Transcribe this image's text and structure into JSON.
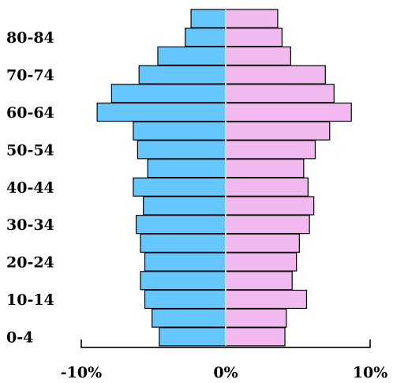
{
  "chart_data": {
    "type": "bar",
    "orientation": "horizontal",
    "layout": "population-pyramid",
    "categories": [
      "0-4",
      "5-9",
      "10-14",
      "15-19",
      "20-24",
      "25-29",
      "30-34",
      "35-39",
      "40-44",
      "45-49",
      "50-54",
      "55-59",
      "60-64",
      "65-69",
      "70-74",
      "75-79",
      "80-84",
      "85+"
    ],
    "visible_category_labels": [
      "0-4",
      "10-14",
      "20-24",
      "30-34",
      "40-44",
      "50-54",
      "60-64",
      "70-74",
      "80-84"
    ],
    "series": [
      {
        "side": "left",
        "color": "#66c7ff",
        "values": [
          4.6,
          5.1,
          5.6,
          5.9,
          5.6,
          5.9,
          6.2,
          5.7,
          6.4,
          5.4,
          6.1,
          6.4,
          8.9,
          7.9,
          6.0,
          4.7,
          2.8,
          2.4
        ]
      },
      {
        "side": "right",
        "color": "#f2b8f0",
        "values": [
          4.1,
          4.2,
          5.6,
          4.6,
          4.9,
          5.1,
          5.8,
          6.1,
          5.7,
          5.4,
          6.2,
          7.2,
          8.7,
          7.5,
          6.9,
          4.5,
          3.9,
          3.6
        ]
      }
    ],
    "x_ticks": [
      "-10%",
      "0%",
      "10%"
    ],
    "xlim": [
      -10,
      10
    ],
    "xlabel": "",
    "ylabel": "",
    "title": "",
    "grid": false,
    "legend": "none"
  }
}
